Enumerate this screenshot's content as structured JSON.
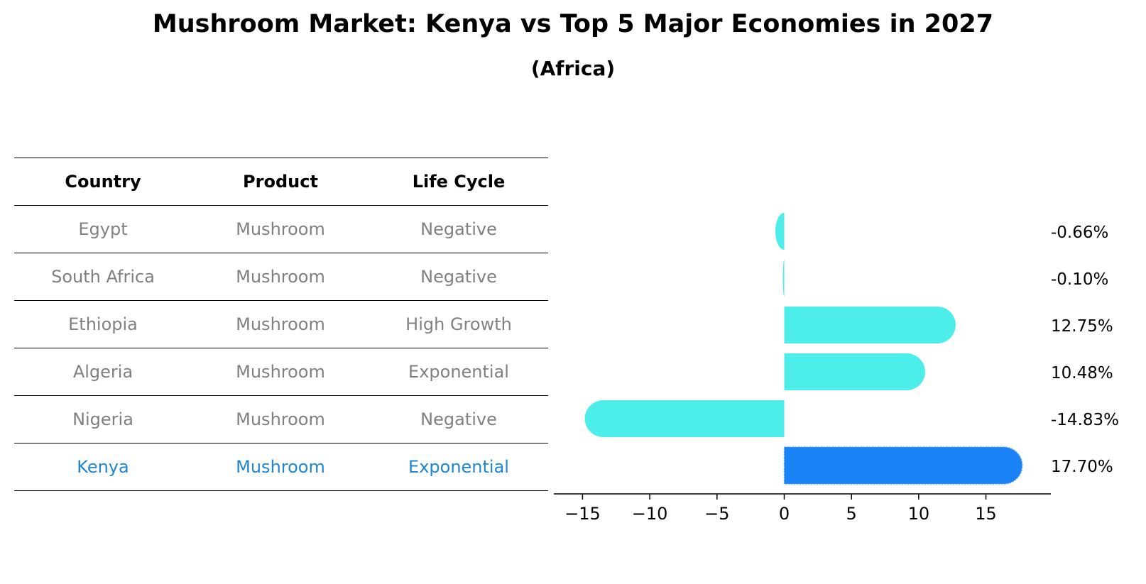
{
  "title": "Mushroom Market: Kenya vs Top 5 Major Economies in 2027",
  "subtitle": "(Africa)",
  "table": {
    "headers": [
      "Country",
      "Product",
      "Life Cycle"
    ],
    "rows": [
      {
        "country": "Egypt",
        "product": "Mushroom",
        "life_cycle": "Negative"
      },
      {
        "country": "South Africa",
        "product": "Mushroom",
        "life_cycle": "Negative"
      },
      {
        "country": "Ethiopia",
        "product": "Mushroom",
        "life_cycle": "High Growth"
      },
      {
        "country": "Algeria",
        "product": "Mushroom",
        "life_cycle": "Exponential"
      },
      {
        "country": "Nigeria",
        "product": "Mushroom",
        "life_cycle": "Negative"
      },
      {
        "country": "Kenya",
        "product": "Mushroom",
        "life_cycle": "Exponential"
      }
    ],
    "highlight_row": "Kenya"
  },
  "chart_data": {
    "type": "bar",
    "orientation": "horizontal",
    "categories": [
      "Egypt",
      "South Africa",
      "Ethiopia",
      "Algeria",
      "Nigeria",
      "Kenya"
    ],
    "values": [
      -0.66,
      -0.1,
      12.75,
      10.48,
      -14.83,
      17.7
    ],
    "value_labels": [
      "-0.66%",
      "-0.10%",
      "12.75%",
      "10.48%",
      "-14.83%",
      "17.70%"
    ],
    "xlim": [
      -16.5,
      19.3
    ],
    "xticks": [
      -15,
      -10,
      -5,
      0,
      5,
      10,
      15
    ],
    "xtick_labels": [
      "−15",
      "−10",
      "−5",
      "0",
      "5",
      "10",
      "15"
    ],
    "grid": false,
    "colors": {
      "default": "#4deeea",
      "highlight": "#1a83f5"
    },
    "highlight": "Kenya"
  }
}
